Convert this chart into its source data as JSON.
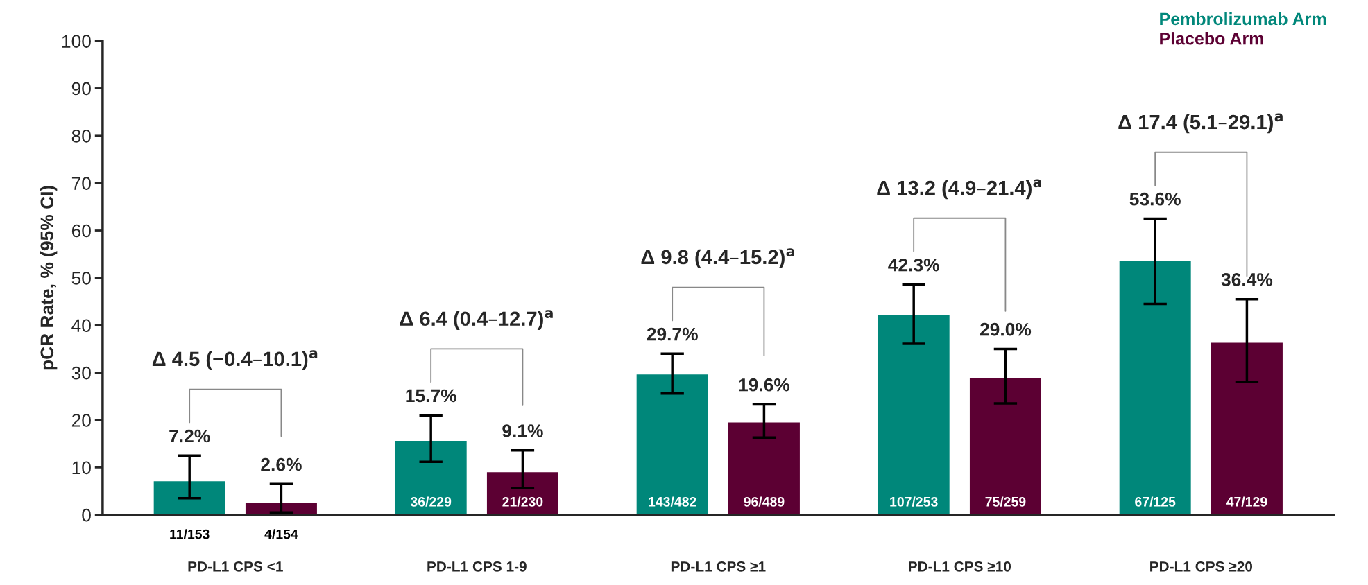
{
  "chart_data": {
    "type": "bar",
    "categories": [
      "PD-L1 CPS <1",
      "PD-L1 CPS 1-9",
      "PD-L1 CPS ≥1",
      "PD-L1 CPS ≥10",
      "PD-L1 CPS ≥20"
    ],
    "series": [
      {
        "name": "Pembrolizumab Arm",
        "color": "#00877a",
        "values": [
          7.2,
          15.7,
          29.7,
          42.3,
          53.6
        ],
        "errors": [
          [
            3.5,
            12.5
          ],
          [
            11.2,
            21.0
          ],
          [
            25.6,
            34.0
          ],
          [
            36.1,
            48.6
          ],
          [
            44.5,
            62.5
          ]
        ],
        "value_labels": [
          "7.2%",
          "15.7%",
          "29.7%",
          "42.3%",
          "53.6%"
        ]
      },
      {
        "name": "Placebo Arm",
        "color": "#5c0033",
        "values": [
          2.6,
          9.1,
          19.6,
          29.0,
          36.4
        ],
        "errors": [
          [
            0.5,
            6.5
          ],
          [
            5.7,
            13.6
          ],
          [
            16.3,
            23.3
          ],
          [
            23.5,
            35.0
          ],
          [
            28.0,
            45.5
          ]
        ],
        "value_labels": [
          "2.6%",
          "9.1%",
          "19.6%",
          "29.0%",
          "36.4%"
        ]
      }
    ],
    "ylabel": "pCR Rate, % (95% CI)",
    "ylim": [
      0,
      100
    ],
    "yticks": [
      0,
      10,
      20,
      30,
      40,
      50,
      60,
      70,
      80,
      90,
      100
    ],
    "grid": false,
    "legend": "top right",
    "annotations": [
      "11/153",
      "4/154",
      "36/229",
      "21/230",
      "143/482",
      "96/489",
      "107/253",
      "75/259",
      "67/125",
      "47/129",
      "Δ 4.5 (−0.4–10.1)$^{a}$",
      "Δ 6.4 (0.4–12.7)$^{a}$",
      "Δ 9.8 (4.4–15.2)$^{a}$",
      "Δ 13.2 (4.9–21.4)$^{a}$",
      "Δ 17.4 (5.1–29.1)$^{a}$"
    ]
  }
}
